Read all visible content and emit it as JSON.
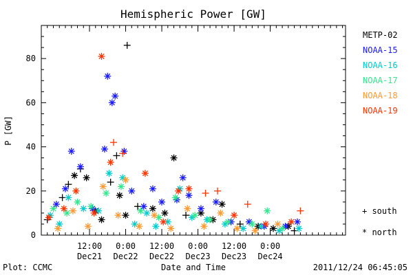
{
  "chart_data": {
    "type": "scatter",
    "title": "Hemispheric Power [GW]",
    "ylabel": "P [GW]",
    "xlabel": "Date and Time",
    "ylim": [
      0,
      95
    ],
    "x_range": [
      "2011-12-20T20:00",
      "2011-12-25T01:00"
    ],
    "y_ticks": [
      0,
      20,
      40,
      60,
      80
    ],
    "x_ticks": [
      {
        "time": "2011-12-21T12:00",
        "label_top": "12:00",
        "label_bottom": "Dec21"
      },
      {
        "time": "2011-12-22T00:00",
        "label_top": "0:00",
        "label_bottom": "Dec22"
      },
      {
        "time": "2011-12-22T12:00",
        "label_top": "12:00",
        "label_bottom": "Dec22"
      },
      {
        "time": "2011-12-23T00:00",
        "label_top": "0:00",
        "label_bottom": "Dec23"
      },
      {
        "time": "2011-12-23T12:00",
        "label_top": "12:00",
        "label_bottom": "Dec23"
      },
      {
        "time": "2011-12-24T00:00",
        "label_top": "0:00",
        "label_bottom": "Dec24"
      }
    ],
    "grid": false,
    "legend_position": "right",
    "series": [
      {
        "name": "METP-02",
        "color": "#000000",
        "points": [
          {
            "x": "2011-12-20T22:00",
            "y": 7,
            "hemisphere": "south"
          },
          {
            "x": "2011-12-21T03:00",
            "y": 17,
            "hemisphere": "south"
          },
          {
            "x": "2011-12-21T05:00",
            "y": 23,
            "hemisphere": "south"
          },
          {
            "x": "2011-12-21T07:00",
            "y": 27,
            "hemisphere": "north"
          },
          {
            "x": "2011-12-21T09:00",
            "y": 30,
            "hemisphere": "south"
          },
          {
            "x": "2011-12-21T11:00",
            "y": 26,
            "hemisphere": "north"
          },
          {
            "x": "2011-12-21T14:00",
            "y": 11,
            "hemisphere": "north"
          },
          {
            "x": "2011-12-21T16:00",
            "y": 7,
            "hemisphere": "north"
          },
          {
            "x": "2011-12-21T19:00",
            "y": 24,
            "hemisphere": "south"
          },
          {
            "x": "2011-12-21T21:00",
            "y": 36,
            "hemisphere": "south"
          },
          {
            "x": "2011-12-21T22:00",
            "y": 18,
            "hemisphere": "north"
          },
          {
            "x": "2011-12-22T00:00",
            "y": 9,
            "hemisphere": "north"
          },
          {
            "x": "2011-12-22T00:30",
            "y": 86,
            "hemisphere": "south"
          },
          {
            "x": "2011-12-22T04:00",
            "y": 13,
            "hemisphere": "south"
          },
          {
            "x": "2011-12-22T09:00",
            "y": 12,
            "hemisphere": "north"
          },
          {
            "x": "2011-12-22T13:00",
            "y": 10,
            "hemisphere": "north"
          },
          {
            "x": "2011-12-22T16:00",
            "y": 35,
            "hemisphere": "north"
          },
          {
            "x": "2011-12-22T20:00",
            "y": 9,
            "hemisphere": "south"
          },
          {
            "x": "2011-12-23T01:00",
            "y": 10,
            "hemisphere": "north"
          },
          {
            "x": "2011-12-23T05:00",
            "y": 7,
            "hemisphere": "north"
          },
          {
            "x": "2011-12-23T08:00",
            "y": 14,
            "hemisphere": "north"
          },
          {
            "x": "2011-12-23T14:00",
            "y": 5,
            "hemisphere": "south"
          },
          {
            "x": "2011-12-23T20:00",
            "y": 4,
            "hemisphere": "north"
          },
          {
            "x": "2011-12-24T01:00",
            "y": 3,
            "hemisphere": "north"
          },
          {
            "x": "2011-12-24T06:00",
            "y": 4,
            "hemisphere": "north"
          },
          {
            "x": "2011-12-24T08:00",
            "y": 2,
            "hemisphere": "south"
          }
        ]
      },
      {
        "name": "NOAA-15",
        "color": "#1a1aff",
        "points": [
          {
            "x": "2011-12-21T01:00",
            "y": 14,
            "hemisphere": "north"
          },
          {
            "x": "2011-12-21T04:00",
            "y": 21,
            "hemisphere": "north"
          },
          {
            "x": "2011-12-21T06:00",
            "y": 38,
            "hemisphere": "north"
          },
          {
            "x": "2011-12-21T09:00",
            "y": 31,
            "hemisphere": "north"
          },
          {
            "x": "2011-12-21T13:00",
            "y": 12,
            "hemisphere": "north"
          },
          {
            "x": "2011-12-21T17:00",
            "y": 39,
            "hemisphere": "north"
          },
          {
            "x": "2011-12-21T18:00",
            "y": 72,
            "hemisphere": "north"
          },
          {
            "x": "2011-12-21T19:30",
            "y": 60,
            "hemisphere": "north"
          },
          {
            "x": "2011-12-21T20:30",
            "y": 63,
            "hemisphere": "north"
          },
          {
            "x": "2011-12-21T23:30",
            "y": 38,
            "hemisphere": "north"
          },
          {
            "x": "2011-12-22T02:00",
            "y": 20,
            "hemisphere": "north"
          },
          {
            "x": "2011-12-22T06:00",
            "y": 13,
            "hemisphere": "north"
          },
          {
            "x": "2011-12-22T09:00",
            "y": 21,
            "hemisphere": "north"
          },
          {
            "x": "2011-12-22T12:00",
            "y": 15,
            "hemisphere": "north"
          },
          {
            "x": "2011-12-22T17:00",
            "y": 16,
            "hemisphere": "north"
          },
          {
            "x": "2011-12-22T19:00",
            "y": 26,
            "hemisphere": "north"
          },
          {
            "x": "2011-12-22T21:00",
            "y": 18,
            "hemisphere": "north"
          },
          {
            "x": "2011-12-23T01:00",
            "y": 12,
            "hemisphere": "north"
          },
          {
            "x": "2011-12-23T06:00",
            "y": 15,
            "hemisphere": "north"
          },
          {
            "x": "2011-12-23T11:00",
            "y": 6,
            "hemisphere": "north"
          },
          {
            "x": "2011-12-23T17:00",
            "y": 6,
            "hemisphere": "north"
          },
          {
            "x": "2011-12-23T22:00",
            "y": 4,
            "hemisphere": "north"
          },
          {
            "x": "2011-12-24T05:00",
            "y": 4,
            "hemisphere": "north"
          },
          {
            "x": "2011-12-24T09:00",
            "y": 6,
            "hemisphere": "north"
          }
        ]
      },
      {
        "name": "NOAA-16",
        "color": "#00cccc",
        "points": [
          {
            "x": "2011-12-20T23:00",
            "y": 9,
            "hemisphere": "north"
          },
          {
            "x": "2011-12-21T02:00",
            "y": 5,
            "hemisphere": "north"
          },
          {
            "x": "2011-12-21T05:00",
            "y": 17,
            "hemisphere": "north"
          },
          {
            "x": "2011-12-21T10:00",
            "y": 12,
            "hemisphere": "north"
          },
          {
            "x": "2011-12-21T15:00",
            "y": 11,
            "hemisphere": "north"
          },
          {
            "x": "2011-12-21T18:30",
            "y": 28,
            "hemisphere": "north"
          },
          {
            "x": "2011-12-21T23:00",
            "y": 26,
            "hemisphere": "north"
          },
          {
            "x": "2011-12-22T03:00",
            "y": 5,
            "hemisphere": "north"
          },
          {
            "x": "2011-12-22T07:00",
            "y": 10,
            "hemisphere": "north"
          },
          {
            "x": "2011-12-22T10:00",
            "y": 4,
            "hemisphere": "north"
          },
          {
            "x": "2011-12-22T14:00",
            "y": 6,
            "hemisphere": "north"
          },
          {
            "x": "2011-12-22T18:00",
            "y": 21,
            "hemisphere": "north"
          },
          {
            "x": "2011-12-22T22:00",
            "y": 8,
            "hemisphere": "north"
          },
          {
            "x": "2011-12-23T03:00",
            "y": 7,
            "hemisphere": "north"
          },
          {
            "x": "2011-12-23T09:00",
            "y": 5,
            "hemisphere": "north"
          },
          {
            "x": "2011-12-23T15:00",
            "y": 3,
            "hemisphere": "north"
          },
          {
            "x": "2011-12-23T21:00",
            "y": 4,
            "hemisphere": "north"
          },
          {
            "x": "2011-12-24T03:00",
            "y": 2,
            "hemisphere": "north"
          },
          {
            "x": "2011-12-24T09:30",
            "y": 3,
            "hemisphere": "north"
          }
        ]
      },
      {
        "name": "NOAA-17",
        "color": "#33e68c",
        "points": [
          {
            "x": "2011-12-21T00:00",
            "y": 12,
            "hemisphere": "north"
          },
          {
            "x": "2011-12-21T04:30",
            "y": 10,
            "hemisphere": "north"
          },
          {
            "x": "2011-12-21T08:00",
            "y": 15,
            "hemisphere": "north"
          },
          {
            "x": "2011-12-21T12:30",
            "y": 13,
            "hemisphere": "north"
          },
          {
            "x": "2011-12-21T17:30",
            "y": 19,
            "hemisphere": "north"
          },
          {
            "x": "2011-12-21T22:30",
            "y": 22,
            "hemisphere": "north"
          },
          {
            "x": "2011-12-22T05:00",
            "y": 11,
            "hemisphere": "north"
          },
          {
            "x": "2011-12-22T11:00",
            "y": 8,
            "hemisphere": "north"
          },
          {
            "x": "2011-12-22T16:30",
            "y": 17,
            "hemisphere": "north"
          },
          {
            "x": "2011-12-22T23:00",
            "y": 9,
            "hemisphere": "north"
          },
          {
            "x": "2011-12-23T04:00",
            "y": 7,
            "hemisphere": "north"
          },
          {
            "x": "2011-12-23T10:00",
            "y": 6,
            "hemisphere": "north"
          },
          {
            "x": "2011-12-23T18:00",
            "y": 5,
            "hemisphere": "north"
          },
          {
            "x": "2011-12-23T23:00",
            "y": 11,
            "hemisphere": "north"
          },
          {
            "x": "2011-12-24T04:00",
            "y": 3,
            "hemisphere": "north"
          }
        ]
      },
      {
        "name": "NOAA-18",
        "color": "#ff9933",
        "points": [
          {
            "x": "2011-12-21T01:30",
            "y": 3,
            "hemisphere": "north"
          },
          {
            "x": "2011-12-21T06:30",
            "y": 11,
            "hemisphere": "north"
          },
          {
            "x": "2011-12-21T11:30",
            "y": 4,
            "hemisphere": "north"
          },
          {
            "x": "2011-12-21T16:30",
            "y": 22,
            "hemisphere": "north"
          },
          {
            "x": "2011-12-21T21:30",
            "y": 9,
            "hemisphere": "north"
          },
          {
            "x": "2011-12-22T00:00",
            "y": 25,
            "hemisphere": "north"
          },
          {
            "x": "2011-12-22T04:30",
            "y": 4,
            "hemisphere": "north"
          },
          {
            "x": "2011-12-22T09:30",
            "y": 9,
            "hemisphere": "north"
          },
          {
            "x": "2011-12-22T15:00",
            "y": 3,
            "hemisphere": "north"
          },
          {
            "x": "2011-12-22T20:30",
            "y": 12,
            "hemisphere": "north"
          },
          {
            "x": "2011-12-23T02:00",
            "y": 4,
            "hemisphere": "north"
          },
          {
            "x": "2011-12-23T07:30",
            "y": 10,
            "hemisphere": "north"
          },
          {
            "x": "2011-12-23T13:00",
            "y": 3,
            "hemisphere": "north"
          },
          {
            "x": "2011-12-23T19:00",
            "y": 2,
            "hemisphere": "north"
          },
          {
            "x": "2011-12-24T02:30",
            "y": 5,
            "hemisphere": "north"
          }
        ]
      },
      {
        "name": "NOAA-19",
        "color": "#ff3300",
        "points": [
          {
            "x": "2011-12-20T22:30",
            "y": 8,
            "hemisphere": "north"
          },
          {
            "x": "2011-12-21T03:30",
            "y": 12,
            "hemisphere": "north"
          },
          {
            "x": "2011-12-21T07:30",
            "y": 20,
            "hemisphere": "north"
          },
          {
            "x": "2011-12-21T13:30",
            "y": 10,
            "hemisphere": "north"
          },
          {
            "x": "2011-12-21T16:00",
            "y": 81,
            "hemisphere": "north"
          },
          {
            "x": "2011-12-21T19:00",
            "y": 33,
            "hemisphere": "north"
          },
          {
            "x": "2011-12-21T20:00",
            "y": 42,
            "hemisphere": "south"
          },
          {
            "x": "2011-12-21T23:00",
            "y": 37,
            "hemisphere": "south"
          },
          {
            "x": "2011-12-22T06:30",
            "y": 28,
            "hemisphere": "north"
          },
          {
            "x": "2011-12-22T12:30",
            "y": 6,
            "hemisphere": "north"
          },
          {
            "x": "2011-12-22T17:30",
            "y": 20,
            "hemisphere": "north"
          },
          {
            "x": "2011-12-22T21:00",
            "y": 21,
            "hemisphere": "north"
          },
          {
            "x": "2011-12-23T02:30",
            "y": 19,
            "hemisphere": "south"
          },
          {
            "x": "2011-12-23T06:30",
            "y": 20,
            "hemisphere": "south"
          },
          {
            "x": "2011-12-23T12:00",
            "y": 9,
            "hemisphere": "north"
          },
          {
            "x": "2011-12-23T16:30",
            "y": 14,
            "hemisphere": "south"
          },
          {
            "x": "2011-12-23T22:30",
            "y": 5,
            "hemisphere": "north"
          },
          {
            "x": "2011-12-24T07:00",
            "y": 6,
            "hemisphere": "north"
          },
          {
            "x": "2011-12-24T10:00",
            "y": 11,
            "hemisphere": "south"
          }
        ]
      }
    ],
    "symbol_legend": [
      {
        "symbol": "+",
        "label": "south"
      },
      {
        "symbol": "*",
        "label": "north"
      }
    ]
  },
  "footer": {
    "plot_credit": "Plot: CCMC",
    "timestamp": "2011/12/24 06:45:05"
  }
}
